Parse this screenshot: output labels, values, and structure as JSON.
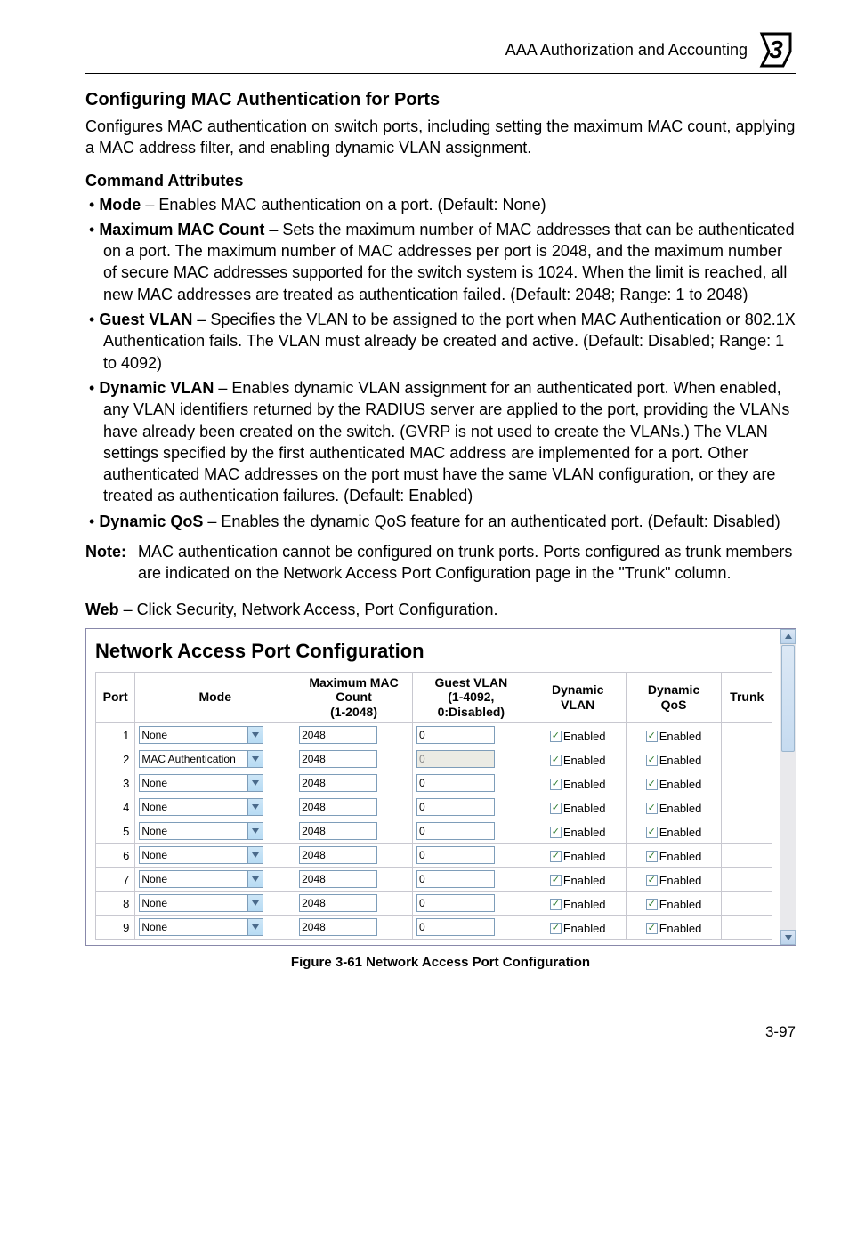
{
  "header": {
    "section": "AAA Authorization and Accounting",
    "chapter_digit": "3"
  },
  "title": "Configuring MAC Authentication for Ports",
  "intro": "Configures MAC authentication on switch ports, including setting the maximum MAC count, applying a MAC address filter, and enabling dynamic VLAN assignment.",
  "subhead": "Command Attributes",
  "attrs": {
    "mode": {
      "term": "Mode",
      "text": " – Enables MAC authentication on a port. (Default: None)"
    },
    "maxmac": {
      "term": "Maximum MAC Count",
      "text": " – Sets the maximum number of MAC addresses that can be authenticated on a port. The maximum number of MAC addresses per port is 2048, and the maximum number of secure MAC addresses supported for the switch system is 1024. When the limit is reached, all new MAC addresses are treated as authentication failed. (Default: 2048; Range: 1 to 2048)"
    },
    "guest": {
      "term": "Guest VLAN",
      "text": " – Specifies the VLAN to be assigned to the port when MAC Authentication or 802.1X Authentication fails. The VLAN must already be created and active. (Default: Disabled; Range: 1 to 4092)"
    },
    "dynvlan": {
      "term": "Dynamic VLAN",
      "text": " – Enables dynamic VLAN assignment for an authenticated port. When enabled, any VLAN identifiers returned by the RADIUS server are applied to the port, providing the VLANs have already been created on the switch. (GVRP is not used to create the VLANs.) The VLAN settings specified by the first authenticated MAC address are implemented for a port. Other authenticated MAC addresses on the port must have the same VLAN configuration, or they are treated as authentication failures. (Default: Enabled)"
    },
    "dynqos": {
      "term": "Dynamic QoS",
      "text": " – Enables the dynamic QoS feature for an authenticated port. (Default: Disabled)"
    }
  },
  "note": {
    "label": "Note:",
    "text": "MAC authentication cannot be configured on trunk ports. Ports configured as trunk members are indicated on the Network Access Port Configuration page in the \"Trunk\" column."
  },
  "web_line": {
    "prefix": "Web",
    "rest": " – Click Security, Network Access, Port Configuration."
  },
  "panel": {
    "title": "Network Access Port Configuration",
    "columns": {
      "port": "Port",
      "mode": "Mode",
      "maxmac_l1": "Maximum MAC",
      "maxmac_l2": "Count",
      "maxmac_l3": "(1-2048)",
      "guest_l1": "Guest VLAN",
      "guest_l2": "(1-4092,",
      "guest_l3": "0:Disabled)",
      "dynvlan_l1": "Dynamic",
      "dynvlan_l2": "VLAN",
      "dynqos_l1": "Dynamic",
      "dynqos_l2": "QoS",
      "trunk": "Trunk"
    },
    "enabled_label": "Enabled",
    "rows": [
      {
        "port": "1",
        "mode": "None",
        "maxmac": "2048",
        "guest": "0",
        "guest_disabled": false,
        "dynvlan": true,
        "dynqos": true,
        "trunk": ""
      },
      {
        "port": "2",
        "mode": "MAC Authentication",
        "maxmac": "2048",
        "guest": "0",
        "guest_disabled": true,
        "dynvlan": true,
        "dynqos": true,
        "trunk": ""
      },
      {
        "port": "3",
        "mode": "None",
        "maxmac": "2048",
        "guest": "0",
        "guest_disabled": false,
        "dynvlan": true,
        "dynqos": true,
        "trunk": ""
      },
      {
        "port": "4",
        "mode": "None",
        "maxmac": "2048",
        "guest": "0",
        "guest_disabled": false,
        "dynvlan": true,
        "dynqos": true,
        "trunk": ""
      },
      {
        "port": "5",
        "mode": "None",
        "maxmac": "2048",
        "guest": "0",
        "guest_disabled": false,
        "dynvlan": true,
        "dynqos": true,
        "trunk": ""
      },
      {
        "port": "6",
        "mode": "None",
        "maxmac": "2048",
        "guest": "0",
        "guest_disabled": false,
        "dynvlan": true,
        "dynqos": true,
        "trunk": ""
      },
      {
        "port": "7",
        "mode": "None",
        "maxmac": "2048",
        "guest": "0",
        "guest_disabled": false,
        "dynvlan": true,
        "dynqos": true,
        "trunk": ""
      },
      {
        "port": "8",
        "mode": "None",
        "maxmac": "2048",
        "guest": "0",
        "guest_disabled": false,
        "dynvlan": true,
        "dynqos": true,
        "trunk": ""
      },
      {
        "port": "9",
        "mode": "None",
        "maxmac": "2048",
        "guest": "0",
        "guest_disabled": false,
        "dynvlan": true,
        "dynqos": true,
        "trunk": ""
      }
    ]
  },
  "figure_caption": "Figure 3-61  Network Access Port Configuration",
  "page_number": "3-97",
  "colors": {
    "select_border": "#7e9db9",
    "arrow_fill": "#4a6a8a"
  }
}
